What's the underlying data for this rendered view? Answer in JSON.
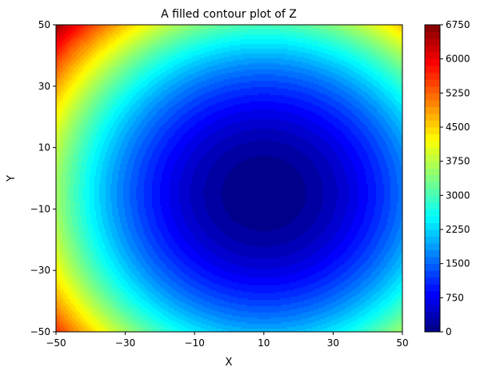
{
  "chart_data": {
    "type": "heatmap",
    "subtype": "filled-contour",
    "title": "A filled contour plot of Z",
    "xlabel": "X",
    "ylabel": "Y",
    "xlim": [
      -50,
      50
    ],
    "ylim": [
      -50,
      50
    ],
    "x_ticks": [
      -50,
      -30,
      -10,
      10,
      30,
      50
    ],
    "x_tick_labels": [
      "−50",
      "−30",
      "−10",
      "10",
      "30",
      "50"
    ],
    "y_ticks": [
      -50,
      -30,
      -10,
      10,
      30,
      50
    ],
    "y_tick_labels": [
      "−50",
      "−30",
      "−10",
      "10",
      "30",
      "50"
    ],
    "minimum_at": {
      "x": 10,
      "y": -5
    },
    "estimated_function": "Z = (x - 10)^2 + (y + 5)^2",
    "colormap": "jet",
    "contour_levels": {
      "min": 0,
      "max": 6750,
      "step": 150
    },
    "colorbar": {
      "ticks": [
        0,
        750,
        1500,
        2250,
        3000,
        3750,
        4500,
        5250,
        6000,
        6750
      ],
      "tick_labels": [
        "0",
        "750",
        "1500",
        "2250",
        "3000",
        "3750",
        "4500",
        "5250",
        "6000",
        "6750"
      ]
    },
    "grid": false,
    "legend": "none"
  }
}
